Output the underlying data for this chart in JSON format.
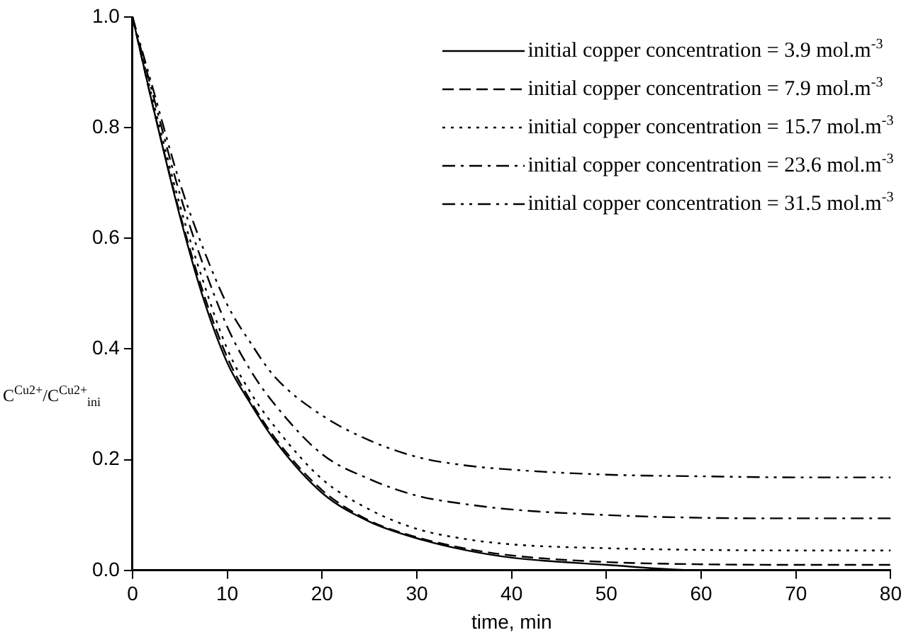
{
  "chart_data": {
    "type": "line",
    "xlabel": "time, min",
    "ylabel": "C$^{Cu2+}$/C$^{Cu2+}$$_{ini}$",
    "x": [
      0,
      2,
      5,
      7.5,
      10,
      12.5,
      15,
      20,
      25,
      30,
      35,
      40,
      50,
      60,
      70,
      80
    ],
    "xlim": [
      0,
      80
    ],
    "xticks": [
      0,
      10,
      20,
      30,
      40,
      50,
      60,
      70,
      80
    ],
    "ylim": [
      0,
      1
    ],
    "yticks": [
      {
        "value": 0,
        "label": "0.0"
      },
      0.2,
      0.4,
      0.6,
      0.8,
      {
        "value": 1,
        "label": "1.0"
      }
    ],
    "grid": false,
    "legend": "top right",
    "marker": "none",
    "series": [
      {
        "name": "initial copper concentration = 3.9 mol.m$^{-3}$",
        "color": "#000000",
        "line_style": "solid",
        "values": [
          1,
          0.85,
          0.64,
          0.49,
          0.375,
          0.3,
          0.235,
          0.14,
          0.088,
          0.058,
          0.037,
          0.023,
          0.01,
          0,
          0,
          0
        ]
      },
      {
        "name": "initial copper concentration =  7.9 mol.m$^{-3}$",
        "color": "#000000",
        "line_style": "dashed",
        "values": [
          1,
          0.85,
          0.645,
          0.5,
          0.385,
          0.305,
          0.24,
          0.145,
          0.09,
          0.06,
          0.04,
          0.027,
          0.015,
          0.011,
          0.01,
          0.01
        ]
      },
      {
        "name": "initial copper concentration = 15.7 mol.m$^{-3}$",
        "color": "#000000",
        "line_style": "dotted",
        "values": [
          1,
          0.86,
          0.66,
          0.52,
          0.4,
          0.32,
          0.26,
          0.165,
          0.11,
          0.075,
          0.057,
          0.047,
          0.04,
          0.037,
          0.036,
          0.036
        ]
      },
      {
        "name": "initial copper concentration = 23.6 mol.m$^{-3}$",
        "color": "#000000",
        "line_style": "dashdot",
        "values": [
          1,
          0.87,
          0.68,
          0.55,
          0.44,
          0.36,
          0.3,
          0.21,
          0.165,
          0.135,
          0.12,
          0.11,
          0.1,
          0.095,
          0.094,
          0.094
        ]
      },
      {
        "name": "initial copper concentration = 31.5 mol.m$^{-3}$",
        "color": "#000000",
        "line_style": "dashdotdot",
        "values": [
          1,
          0.88,
          0.7,
          0.58,
          0.48,
          0.41,
          0.35,
          0.28,
          0.235,
          0.205,
          0.19,
          0.182,
          0.173,
          0.17,
          0.168,
          0.168
        ]
      }
    ]
  }
}
